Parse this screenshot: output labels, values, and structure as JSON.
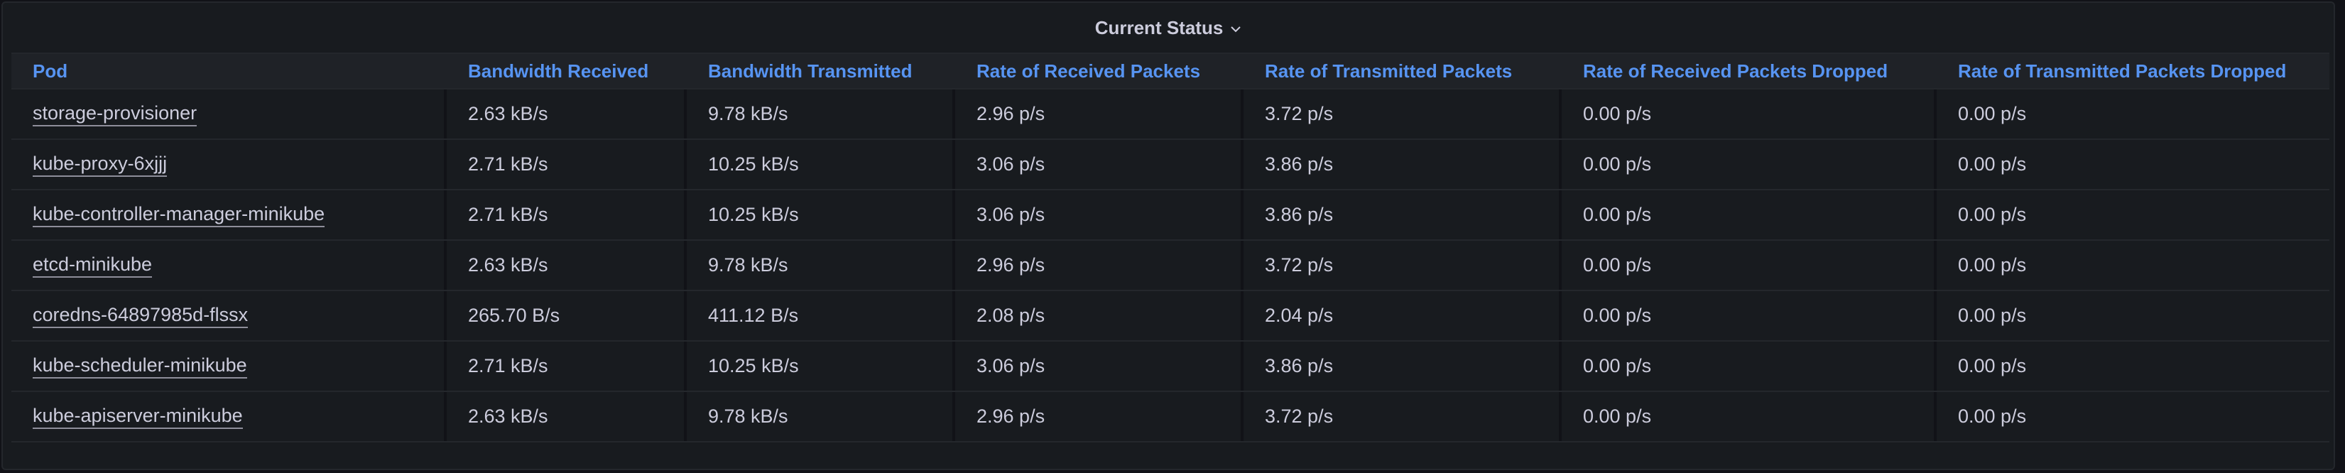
{
  "panel": {
    "title": "Current Status"
  },
  "table": {
    "headers": [
      "Pod",
      "Bandwidth Received",
      "Bandwidth Transmitted",
      "Rate of Received Packets",
      "Rate of Transmitted Packets",
      "Rate of Received Packets Dropped",
      "Rate of Transmitted Packets Dropped"
    ],
    "rows": [
      [
        "storage-provisioner",
        "2.63 kB/s",
        "9.78 kB/s",
        "2.96 p/s",
        "3.72 p/s",
        "0.00 p/s",
        "0.00 p/s"
      ],
      [
        "kube-proxy-6xjjj",
        "2.71 kB/s",
        "10.25 kB/s",
        "3.06 p/s",
        "3.86 p/s",
        "0.00 p/s",
        "0.00 p/s"
      ],
      [
        "kube-controller-manager-minikube",
        "2.71 kB/s",
        "10.25 kB/s",
        "3.06 p/s",
        "3.86 p/s",
        "0.00 p/s",
        "0.00 p/s"
      ],
      [
        "etcd-minikube",
        "2.63 kB/s",
        "9.78 kB/s",
        "2.96 p/s",
        "3.72 p/s",
        "0.00 p/s",
        "0.00 p/s"
      ],
      [
        "coredns-64897985d-flssx",
        "265.70 B/s",
        "411.12 B/s",
        "2.08 p/s",
        "2.04 p/s",
        "0.00 p/s",
        "0.00 p/s"
      ],
      [
        "kube-scheduler-minikube",
        "2.71 kB/s",
        "10.25 kB/s",
        "3.06 p/s",
        "3.86 p/s",
        "0.00 p/s",
        "0.00 p/s"
      ],
      [
        "kube-apiserver-minikube",
        "2.63 kB/s",
        "9.78 kB/s",
        "2.96 p/s",
        "3.72 p/s",
        "0.00 p/s",
        "0.00 p/s"
      ]
    ]
  },
  "icons": {
    "title_menu": "chevron-down-icon"
  },
  "colors": {
    "background": "#111217",
    "panel": "#181b1f",
    "header_text": "#5794f2",
    "cell_text": "#ccccdc"
  }
}
